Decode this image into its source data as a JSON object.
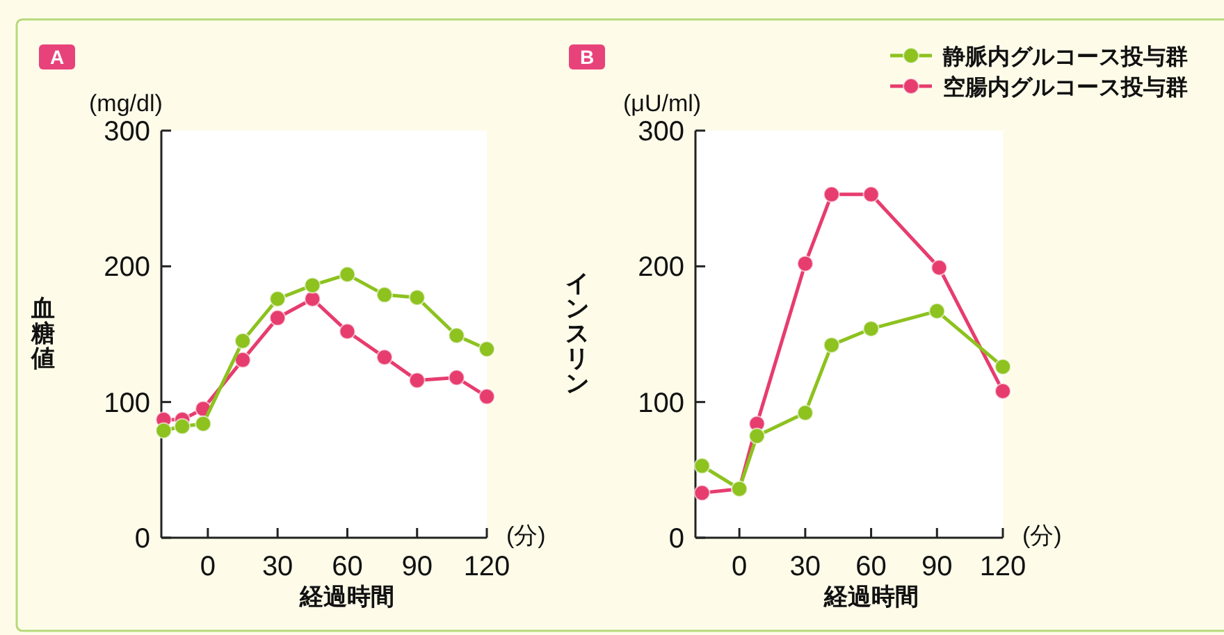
{
  "chart_data": [
    {
      "type": "line",
      "title": "A",
      "xlabel": "経過時間",
      "ylabel": "血糖値",
      "annotations": [
        "(mg/dl)",
        "(分)"
      ],
      "xlim": [
        -20,
        120
      ],
      "xticks": [
        0,
        30,
        60,
        90,
        120
      ],
      "ylim": [
        0,
        300
      ],
      "yticks": [
        0,
        100,
        200,
        300
      ],
      "grid": false,
      "legend": false,
      "marker": "circle",
      "line_style": "solid",
      "series": [
        {
          "color": "#8dc21f",
          "x": [
            -19,
            -11,
            -2,
            15,
            30,
            45,
            60,
            76,
            90,
            107,
            120
          ],
          "values": [
            79,
            82,
            84,
            145,
            176,
            186,
            194,
            179,
            177,
            149,
            139
          ]
        },
        {
          "color": "#e73c6e",
          "x": [
            -19,
            -11,
            -2,
            15,
            30,
            45,
            60,
            76,
            90,
            107,
            120
          ],
          "values": [
            87,
            87,
            95,
            131,
            162,
            176,
            152,
            133,
            116,
            118,
            104
          ]
        }
      ]
    },
    {
      "type": "line",
      "title": "B",
      "xlabel": "経過時間",
      "ylabel": "インスリン",
      "annotations": [
        "(μU/ml)",
        "(分)"
      ],
      "xlim": [
        -20,
        120
      ],
      "xticks": [
        0,
        30,
        60,
        90,
        120
      ],
      "ylim": [
        0,
        300
      ],
      "yticks": [
        0,
        100,
        200,
        300
      ],
      "grid": false,
      "legend": "top right",
      "marker": "circle",
      "line_style": "solid",
      "series": [
        {
          "name": "静脈内グルコース投与群",
          "color": "#8dc21f",
          "x": [
            -17,
            0,
            8,
            30,
            42,
            60,
            90,
            120
          ],
          "values": [
            53,
            36,
            75,
            92,
            142,
            154,
            167,
            126
          ]
        },
        {
          "name": "空腸内グルコース投与群",
          "color": "#e73c6e",
          "x": [
            -17,
            0,
            8,
            30,
            42,
            60,
            91,
            120
          ],
          "values": [
            33,
            36,
            84,
            202,
            253,
            253,
            199,
            108
          ]
        }
      ]
    }
  ]
}
